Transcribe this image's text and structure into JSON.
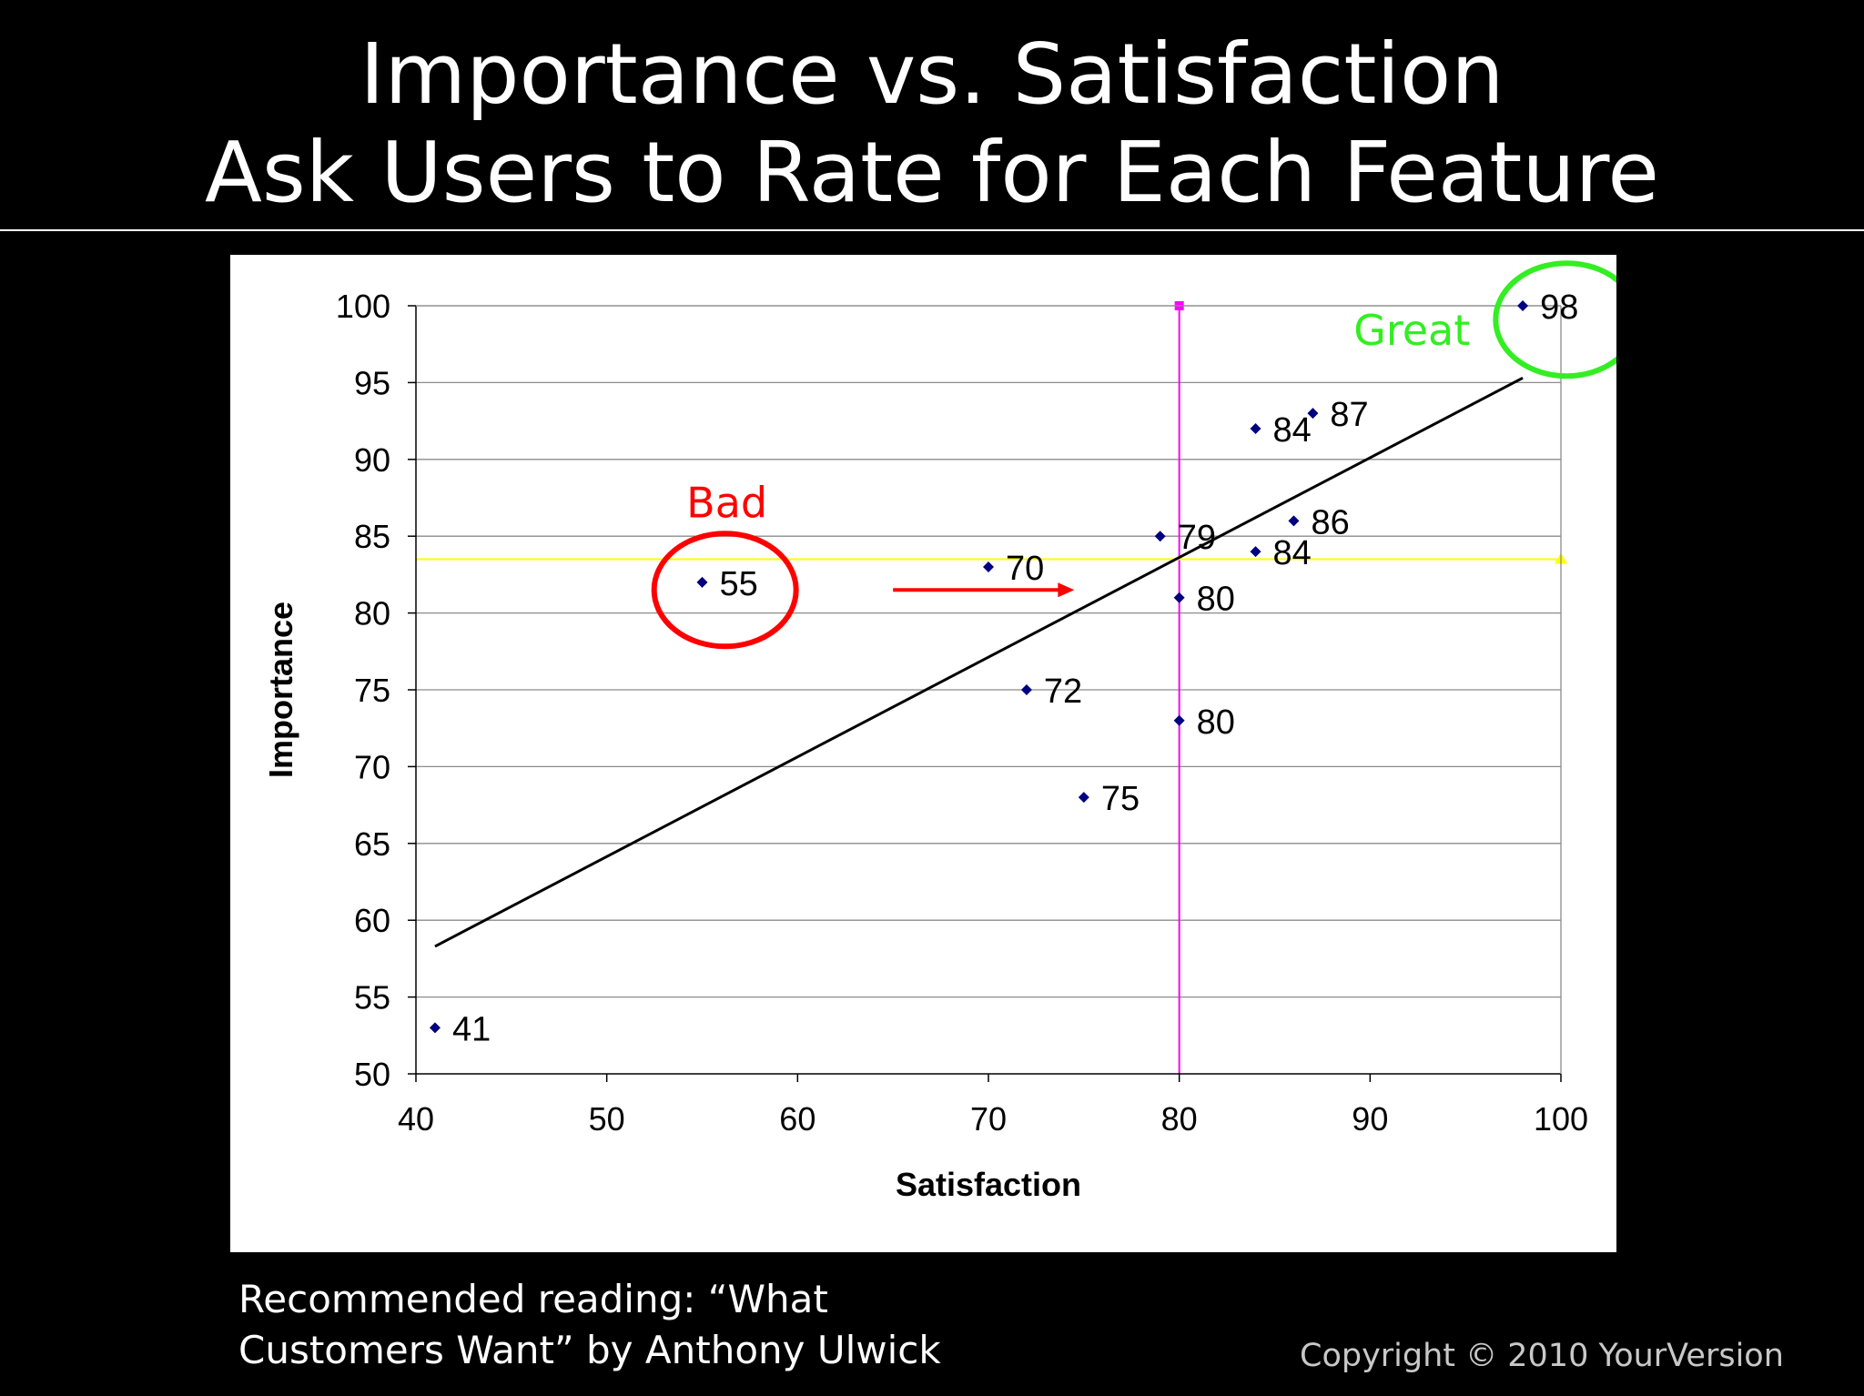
{
  "slide": {
    "title_line1": "Importance vs. Satisfaction",
    "title_line2": "Ask Users to Rate for Each Feature",
    "footer_line1": "Recommended reading: “What",
    "footer_line2": "Customers Want” by Anthony Ulwick",
    "copyright": "Copyright © 2010 YourVersion"
  },
  "chart_data": {
    "type": "scatter",
    "title": "",
    "xlabel": "Satisfaction",
    "ylabel": "Importance",
    "xlim": [
      40,
      100
    ],
    "ylim": [
      50,
      100
    ],
    "xticks": [
      40,
      50,
      60,
      70,
      80,
      90,
      100
    ],
    "yticks": [
      50,
      55,
      60,
      65,
      70,
      75,
      80,
      85,
      90,
      95,
      100
    ],
    "grid": "horizontal",
    "legend": "none",
    "point_color": "#000080",
    "points": [
      {
        "x": 41,
        "y": 53,
        "label": "41"
      },
      {
        "x": 55,
        "y": 82,
        "label": "55"
      },
      {
        "x": 70,
        "y": 83,
        "label": "70"
      },
      {
        "x": 72,
        "y": 75,
        "label": "72"
      },
      {
        "x": 75,
        "y": 68,
        "label": "75"
      },
      {
        "x": 79,
        "y": 85,
        "label": "79"
      },
      {
        "x": 80,
        "y": 81,
        "label": "80"
      },
      {
        "x": 80,
        "y": 73,
        "label": "80"
      },
      {
        "x": 84,
        "y": 92,
        "label": "84"
      },
      {
        "x": 84,
        "y": 84,
        "label": "84"
      },
      {
        "x": 86,
        "y": 86,
        "label": "86"
      },
      {
        "x": 87,
        "y": 93,
        "label": "87"
      },
      {
        "x": 98,
        "y": 100,
        "label": "98"
      }
    ],
    "trendline": {
      "from": [
        41,
        58.3
      ],
      "to": [
        98,
        95.3
      ],
      "color": "#000000"
    },
    "reference_lines": [
      {
        "orientation": "vertical",
        "value": 80,
        "color": "#ff00ff"
      },
      {
        "orientation": "horizontal",
        "value": 83.5,
        "color": "#ffff00"
      }
    ],
    "annotations": [
      {
        "text": "Bad",
        "color": "#ff0000",
        "circle_center": [
          56.2,
          81.5
        ],
        "arrow_from": [
          65,
          81.5
        ],
        "arrow_to": [
          74.5,
          81.5
        ]
      },
      {
        "text": "Great",
        "color": "#33ee22",
        "circle_center": [
          100.3,
          99.1
        ]
      }
    ]
  }
}
